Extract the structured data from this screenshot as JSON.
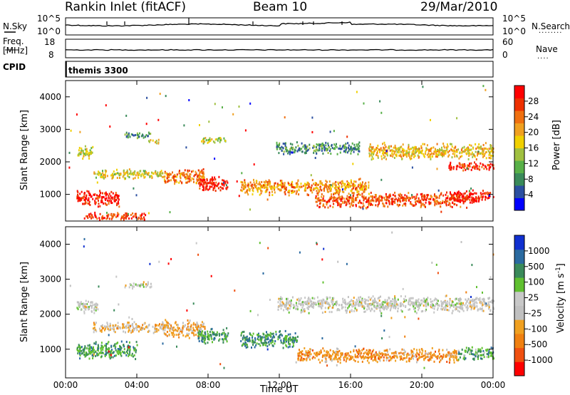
{
  "header": {
    "station": "Rankin Inlet (fitACF)",
    "beam": "Beam 10",
    "date": "29/Mar/2010"
  },
  "noise_panel": {
    "left_label": "N.Sky",
    "left_ticks": [
      "10^5",
      "10^0"
    ],
    "right_label": "N.Search",
    "right_ticks": [
      "10^5",
      "10^0"
    ],
    "right_marker": "........"
  },
  "freq_panel": {
    "left_label_1": "Freq.",
    "left_label_2": "[MHz]",
    "left_ticks": [
      "18",
      "8"
    ],
    "right_label": "Nave",
    "right_ticks": [
      "60",
      "0"
    ],
    "right_marker": "...."
  },
  "cpid_panel": {
    "label": "CPID",
    "value": "themis 3300"
  },
  "x_axis": {
    "label": "Time UT",
    "tick_labels": [
      "00:00",
      "04:00",
      "08:00",
      "12:00",
      "16:00",
      "20:00",
      "00:00"
    ]
  },
  "colors": {
    "power_scale": [
      "#0000ff",
      "#2b4fa0",
      "#3a8a5a",
      "#58b048",
      "#a0c040",
      "#f0d000",
      "#f0a020",
      "#f07010",
      "#ee3000",
      "#ff0000"
    ],
    "velocity_scale": [
      "#ff0000",
      "#f05010",
      "#f08010",
      "#f0a020",
      "#c0c0c0",
      "#c8c8c8",
      "#60c030",
      "#3a8a5a",
      "#2a6aa0",
      "#1030d0"
    ]
  },
  "chart_data": [
    {
      "type": "heatmap",
      "title": "Power",
      "xlabel": "Time UT",
      "ylabel": "Slant Range [km]",
      "xlim": [
        "00:00",
        "24:00"
      ],
      "ylim": [
        180,
        4500
      ],
      "y_ticks": [
        1000,
        2000,
        3000,
        4000
      ],
      "colorbar": {
        "label": "Power [dB]",
        "ticks": [
          "4",
          "8",
          "12",
          "16",
          "20",
          "24",
          "28"
        ],
        "range": [
          0,
          30
        ]
      },
      "features": [
        {
          "t_start": 0.6,
          "t_end": 3.0,
          "range_center": 900,
          "range_width": 550,
          "value": 28
        },
        {
          "t_start": 1.0,
          "t_end": 4.5,
          "range_center": 350,
          "range_width": 250,
          "value": 26
        },
        {
          "t_start": 1.5,
          "t_end": 5.5,
          "range_center": 1650,
          "range_width": 320,
          "value": 16
        },
        {
          "t_start": 0.6,
          "t_end": 1.5,
          "range_center": 2300,
          "range_width": 450,
          "value": 14
        },
        {
          "t_start": 3.3,
          "t_end": 4.8,
          "range_center": 2850,
          "range_width": 200,
          "value": 8
        },
        {
          "t_start": 4.6,
          "t_end": 5.2,
          "range_center": 2650,
          "range_width": 160,
          "value": 18
        },
        {
          "t_start": 5.5,
          "t_end": 7.8,
          "range_center": 1600,
          "range_width": 550,
          "value": 22
        },
        {
          "t_start": 7.4,
          "t_end": 9.1,
          "range_center": 1350,
          "range_width": 500,
          "value": 28
        },
        {
          "t_start": 7.6,
          "t_end": 9.0,
          "range_center": 2700,
          "range_width": 220,
          "value": 14
        },
        {
          "t_start": 9.8,
          "t_end": 17.0,
          "range_center": 1250,
          "range_width": 550,
          "value": 20
        },
        {
          "t_start": 11.8,
          "t_end": 16.5,
          "range_center": 2450,
          "range_width": 400,
          "value": 8
        },
        {
          "t_start": 14.0,
          "t_end": 22.5,
          "range_center": 850,
          "range_width": 500,
          "value": 24
        },
        {
          "t_start": 17.0,
          "t_end": 24.0,
          "range_center": 2350,
          "range_width": 550,
          "value": 18
        },
        {
          "t_start": 21.5,
          "t_end": 24.0,
          "range_center": 950,
          "range_width": 450,
          "value": 28
        },
        {
          "t_start": 21.5,
          "t_end": 24.0,
          "range_center": 1900,
          "range_width": 300,
          "value": 26
        }
      ]
    },
    {
      "type": "heatmap",
      "title": "Velocity",
      "xlabel": "Time UT",
      "ylabel": "Slant Range [km]",
      "xlim": [
        "00:00",
        "24:00"
      ],
      "ylim": [
        180,
        4500
      ],
      "y_ticks": [
        1000,
        2000,
        3000,
        4000
      ],
      "colorbar": {
        "label": "Velocity [m s^-1]",
        "ticks": [
          "1000",
          "500",
          "100",
          "25",
          "-25",
          "-100",
          "-500",
          "-1000"
        ],
        "range": [
          -1000,
          1000
        ]
      },
      "features": [
        {
          "t_start": 0.6,
          "t_end": 4.0,
          "range_center": 1000,
          "range_width": 550,
          "value": 450
        },
        {
          "t_start": 1.5,
          "t_end": 5.5,
          "range_center": 1650,
          "range_width": 320,
          "value": -200
        },
        {
          "t_start": 0.6,
          "t_end": 1.8,
          "range_center": 2250,
          "range_width": 450,
          "value": 0
        },
        {
          "t_start": 3.3,
          "t_end": 4.8,
          "range_center": 2850,
          "range_width": 200,
          "value": 0
        },
        {
          "t_start": 5.5,
          "t_end": 7.8,
          "range_center": 1600,
          "range_width": 550,
          "value": -300
        },
        {
          "t_start": 7.4,
          "t_end": 9.1,
          "range_center": 1400,
          "range_width": 500,
          "value": 450
        },
        {
          "t_start": 9.8,
          "t_end": 13.0,
          "range_center": 1300,
          "range_width": 550,
          "value": 500
        },
        {
          "t_start": 11.8,
          "t_end": 24.0,
          "range_center": 2300,
          "range_width": 500,
          "value": 0
        },
        {
          "t_start": 13.0,
          "t_end": 22.0,
          "range_center": 850,
          "range_width": 450,
          "value": -400
        },
        {
          "t_start": 22.0,
          "t_end": 24.0,
          "range_center": 900,
          "range_width": 400,
          "value": 400
        }
      ]
    }
  ]
}
